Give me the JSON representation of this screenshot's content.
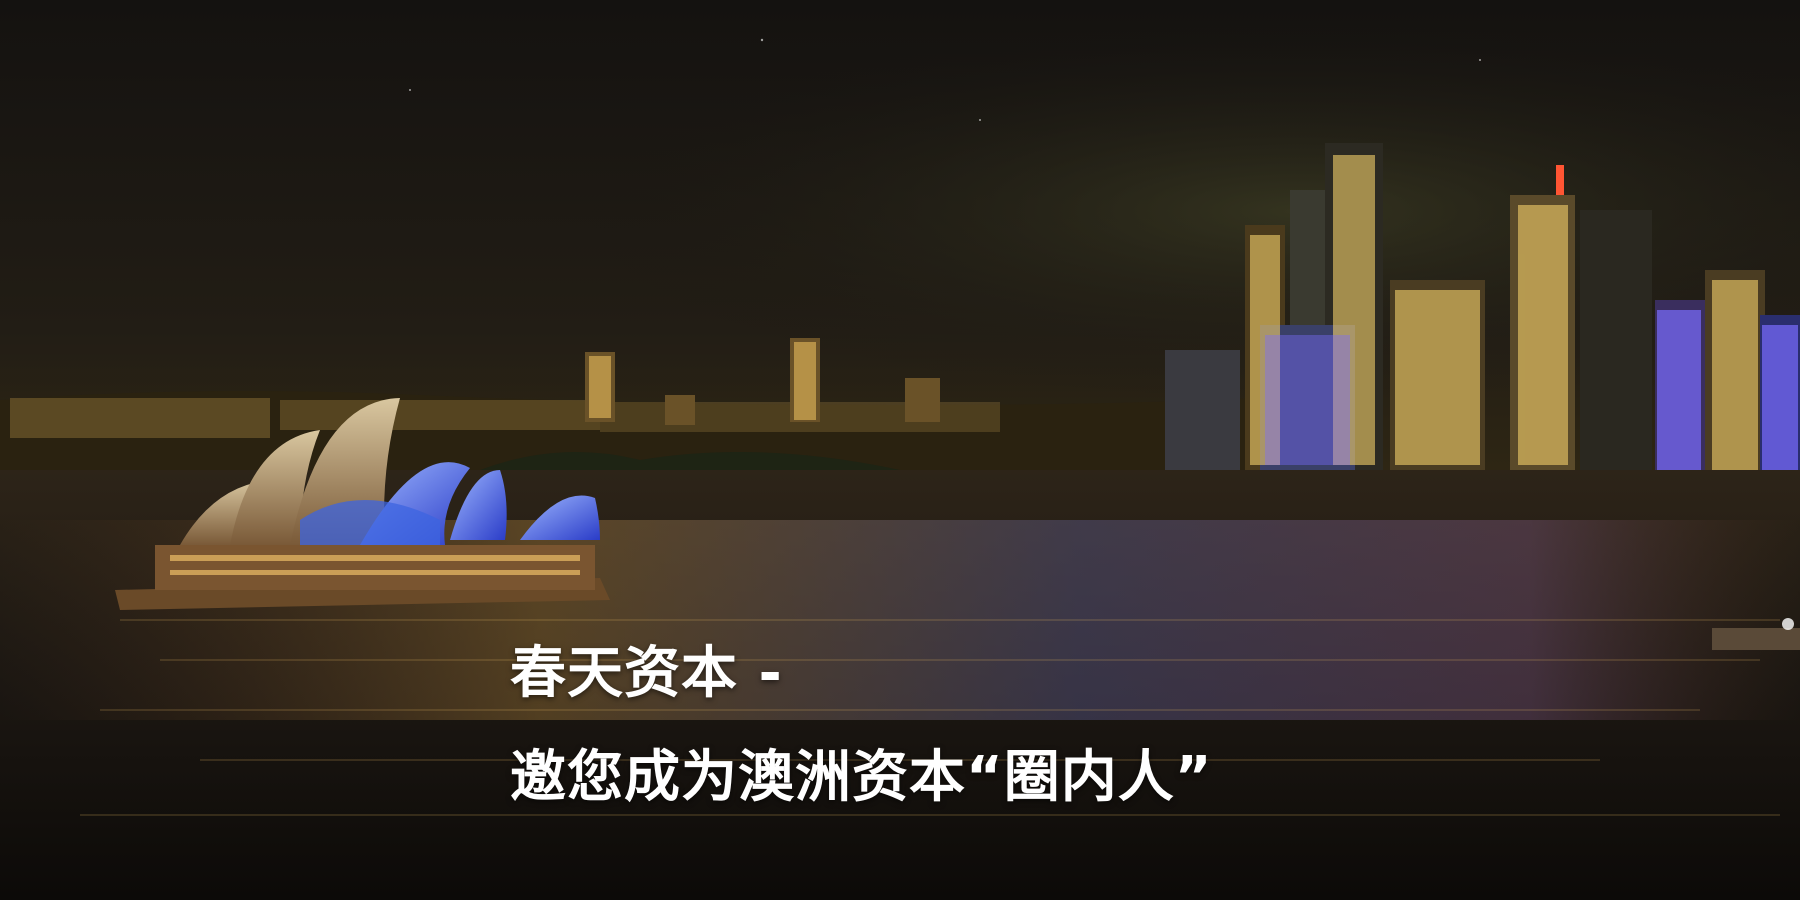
{
  "hero": {
    "background": "night-city-skyline-harbor-photo",
    "headline_line1": "春天资本 -",
    "headline_line2": "邀您成为澳洲资本“圈内人”",
    "text_color": "#ffffff"
  }
}
